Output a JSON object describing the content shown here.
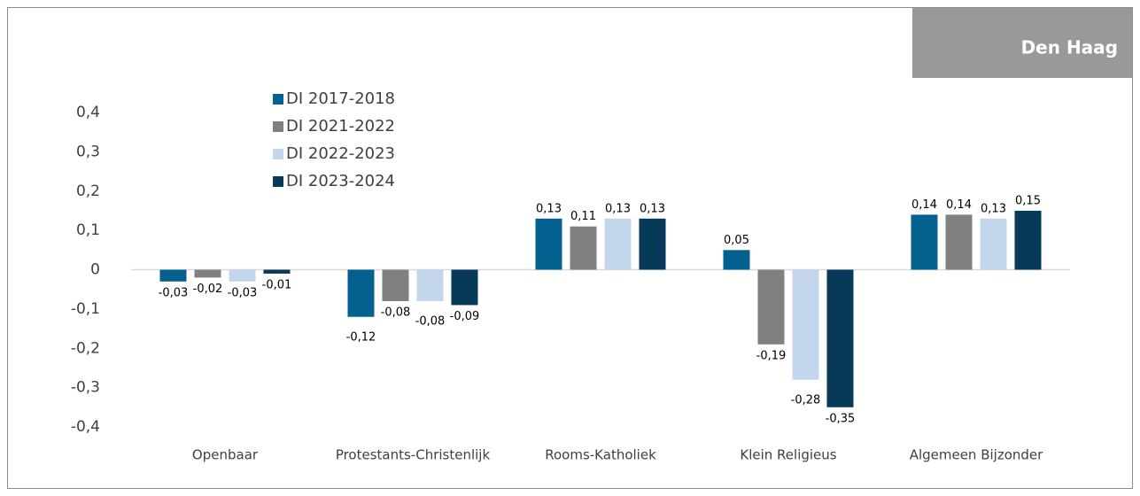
{
  "chart_data": {
    "type": "bar",
    "title": "Den Haag",
    "categories": [
      "Openbaar",
      "Protestants-Christenlijk",
      "Rooms-Katholiek",
      "Klein Religieus",
      "Algemeen Bijzonder"
    ],
    "series": [
      {
        "name": "DI 2017-2018",
        "color": "#03608f",
        "values": [
          -0.03,
          -0.12,
          0.13,
          0.05,
          0.14
        ],
        "value_labels": [
          "-0,03",
          "-0,12",
          "0,13",
          "0,05",
          "0,14"
        ]
      },
      {
        "name": "DI 2021-2022",
        "color": "#808080",
        "values": [
          -0.02,
          -0.08,
          0.11,
          -0.19,
          0.14
        ],
        "value_labels": [
          "-0,02",
          "-0,08",
          "0,11",
          "-0,19",
          "0,14"
        ]
      },
      {
        "name": "DI 2022-2023",
        "color": "#c3d6ec",
        "values": [
          -0.03,
          -0.08,
          0.13,
          -0.28,
          0.13
        ],
        "value_labels": [
          "-0,03",
          "-0,08",
          "0,13",
          "-0,28",
          "0,13"
        ]
      },
      {
        "name": "DI 2023-2024",
        "color": "#073a59",
        "values": [
          -0.01,
          -0.09,
          0.13,
          -0.35,
          0.15
        ],
        "value_labels": [
          "-0,01",
          "-0,09",
          "0,13",
          "-0,35",
          "0,15"
        ]
      }
    ],
    "ylim": [
      -0.4,
      0.4
    ],
    "yticks": [
      {
        "value": -0.4,
        "label": "-0,4"
      },
      {
        "value": -0.3,
        "label": "-0,3"
      },
      {
        "value": -0.2,
        "label": "-0,2"
      },
      {
        "value": -0.1,
        "label": "-0,1"
      },
      0,
      {
        "value": 0.1,
        "label": "0,1"
      },
      {
        "value": 0.2,
        "label": "0,2"
      },
      {
        "value": 0.3,
        "label": "0,3"
      },
      {
        "value": 0.4,
        "label": "0,4"
      }
    ],
    "grid": false,
    "legend": "top-left"
  }
}
